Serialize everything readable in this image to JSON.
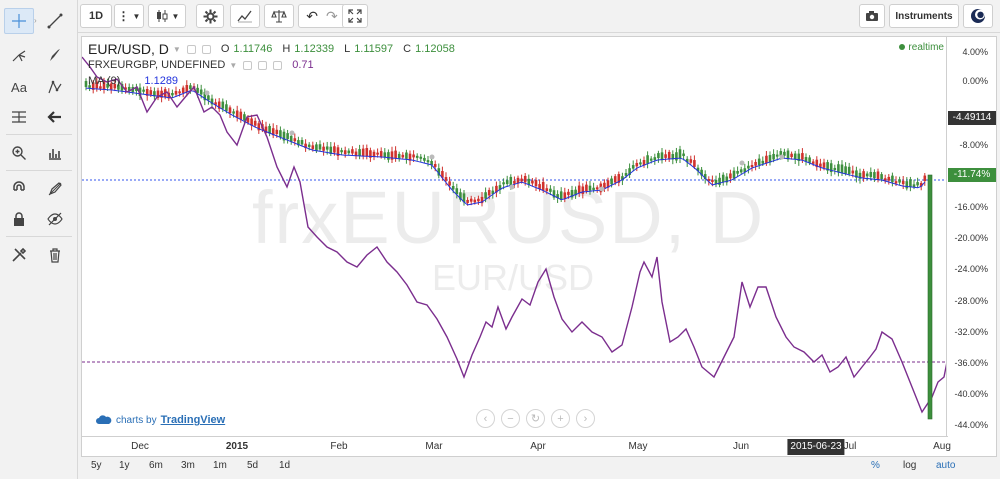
{
  "toolbar": {
    "interval": "1D",
    "instruments_label": "Instruments"
  },
  "legend": {
    "symbol": "EUR/USD, D",
    "open_label": "O",
    "open": "1.11746",
    "high_label": "H",
    "high": "1.12339",
    "low_label": "L",
    "low": "1.11597",
    "close_label": "C",
    "close": "1.12058",
    "compare_symbol": "FRXEURGBP, UNDEFINED",
    "compare_value": "0.71",
    "ma_label": "MA (9)",
    "ma_value": "1.1289"
  },
  "realtime": "realtime",
  "watermark": {
    "line1": "frxEURUSD, D",
    "line2": "EUR/USD"
  },
  "y_axis": {
    "ticks": [
      "4.00%",
      "0.00%",
      "-8.00%",
      "-12.00%",
      "-16.00%",
      "-20.00%",
      "-24.00%",
      "-28.00%",
      "-32.00%",
      "-36.00%",
      "-40.00%",
      "-44.00%"
    ],
    "badge_price": "-4.49114",
    "badge_pct": "-11.74%"
  },
  "x_axis": {
    "ticks": [
      "Dec",
      "2015",
      "Feb",
      "Mar",
      "Apr",
      "May",
      "Jun",
      "Jul",
      "Aug"
    ],
    "cursor_date": "2015-06-23"
  },
  "brand": {
    "prefix": "charts by",
    "name": "TradingView"
  },
  "ranges": [
    "5y",
    "1y",
    "6m",
    "3m",
    "1m",
    "5d",
    "1d"
  ],
  "scale_options": {
    "percent": "%",
    "log": "log",
    "auto": "auto"
  },
  "colors": {
    "up": "#3d8f3d",
    "down": "#d0312d",
    "ma": "#2233dd",
    "compare": "#7b2e8e",
    "badge_price": "#333333",
    "badge_pct": "#3d8f3d"
  }
}
